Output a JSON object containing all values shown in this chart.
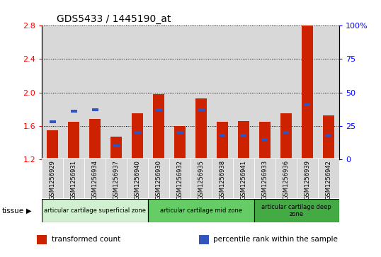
{
  "title": "GDS5433 / 1445190_at",
  "samples": [
    "GSM1256929",
    "GSM1256931",
    "GSM1256934",
    "GSM1256937",
    "GSM1256940",
    "GSM1256930",
    "GSM1256932",
    "GSM1256935",
    "GSM1256938",
    "GSM1256941",
    "GSM1256933",
    "GSM1256936",
    "GSM1256939",
    "GSM1256942"
  ],
  "transformed_count": [
    1.55,
    1.65,
    1.68,
    1.47,
    1.75,
    1.98,
    1.6,
    1.93,
    1.65,
    1.66,
    1.65,
    1.75,
    2.8,
    1.73
  ],
  "percentile_rank_pct": [
    28,
    36,
    37,
    10,
    20,
    37,
    20,
    37,
    18,
    18,
    15,
    20,
    41,
    18
  ],
  "ylim_left": [
    1.2,
    2.8
  ],
  "ylim_right": [
    0,
    100
  ],
  "yticks_left": [
    1.2,
    1.6,
    2.0,
    2.4,
    2.8
  ],
  "yticks_right": [
    0,
    25,
    50,
    75,
    100
  ],
  "bar_color": "#cc2200",
  "percentile_color": "#3355bb",
  "col_bg_color": "#d8d8d8",
  "plot_bg": "#ffffff",
  "tissue_groups": [
    {
      "label": "articular cartilage superficial zone",
      "start": 0,
      "end": 4,
      "color": "#d0f0d0"
    },
    {
      "label": "articular cartilage mid zone",
      "start": 5,
      "end": 9,
      "color": "#66cc66"
    },
    {
      "label": "articular cartilage deep\nzone",
      "start": 10,
      "end": 13,
      "color": "#44aa44"
    }
  ],
  "tissue_label": "tissue",
  "legend_items": [
    {
      "label": "transformed count",
      "color": "#cc2200"
    },
    {
      "label": "percentile rank within the sample",
      "color": "#3355bb"
    }
  ],
  "bar_width": 0.55
}
